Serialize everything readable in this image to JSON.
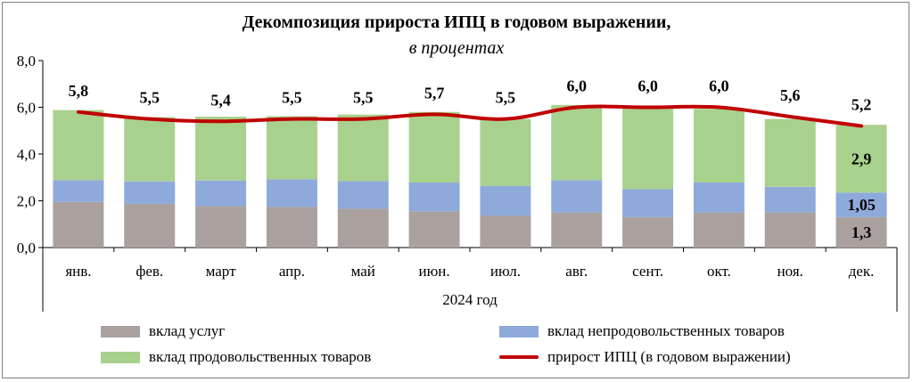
{
  "chart_data": {
    "type": "bar",
    "title": "Декомпозиция прироста ИПЦ в годовом выражении,",
    "subtitle": "в процентах",
    "xlabel": "2024 год",
    "ylabel": "",
    "ylim": [
      0,
      8
    ],
    "yticks": [
      "0,0",
      "2,0",
      "4,0",
      "6,0",
      "8,0"
    ],
    "categories": [
      "янв.",
      "фев.",
      "март",
      "апр.",
      "май",
      "июн.",
      "июл.",
      "авг.",
      "сент.",
      "окт.",
      "ноя.",
      "дек."
    ],
    "series": [
      {
        "name": "вклад услуг",
        "color": "#aaa19f",
        "values": [
          1.95,
          1.87,
          1.77,
          1.74,
          1.66,
          1.55,
          1.37,
          1.5,
          1.3,
          1.5,
          1.5,
          1.3
        ]
      },
      {
        "name": "вклад непродовольственных товаров",
        "color": "#8eaadb",
        "values": [
          0.93,
          0.96,
          1.1,
          1.18,
          1.18,
          1.23,
          1.27,
          1.38,
          1.2,
          1.28,
          1.1,
          1.05
        ]
      },
      {
        "name": "вклад продовольственных товаров",
        "color": "#a9d18e",
        "values": [
          3.0,
          2.75,
          2.73,
          2.7,
          2.85,
          3.02,
          2.86,
          3.22,
          3.5,
          3.15,
          2.9,
          2.9
        ]
      }
    ],
    "line": {
      "name": "прирост ИПЦ (в годовом выражении)",
      "color": "#c00000",
      "values": [
        5.8,
        5.5,
        5.4,
        5.5,
        5.5,
        5.7,
        5.5,
        6.0,
        6.0,
        6.0,
        5.6,
        5.2
      ]
    },
    "line_labels": [
      "5,8",
      "5,5",
      "5,4",
      "5,5",
      "5,5",
      "5,7",
      "5,5",
      "6,0",
      "6,0",
      "6,0",
      "5,6",
      "5,2"
    ],
    "segment_labels": [
      {
        "category_index": 11,
        "series_index": 0,
        "text": "1,3"
      },
      {
        "category_index": 11,
        "series_index": 1,
        "text": "1,05"
      },
      {
        "category_index": 11,
        "series_index": 2,
        "text": "2,9"
      }
    ],
    "legend": {
      "placement": "bottom"
    }
  }
}
